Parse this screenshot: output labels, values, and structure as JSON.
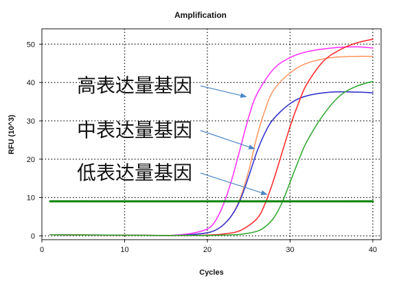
{
  "chart_data": {
    "type": "line",
    "title": "Amplification",
    "xlabel": "Cycles",
    "ylabel": "RFU (10^3)",
    "xlim": [
      0,
      41
    ],
    "ylim": [
      -1,
      54
    ],
    "x_ticks": [
      0,
      10,
      20,
      30,
      40
    ],
    "y_ticks": [
      0,
      10,
      20,
      30,
      40,
      50
    ],
    "grid": true,
    "series": [
      {
        "color": "#ff33ff",
        "x": [
          1,
          14,
          16,
          18,
          20,
          21,
          22,
          23,
          24,
          25,
          26,
          28,
          30,
          32,
          35,
          38,
          40
        ],
        "y": [
          0.3,
          0.1,
          0.2,
          0.6,
          1.8,
          4,
          8.5,
          15,
          23,
          31,
          37,
          43.5,
          46.5,
          48,
          49,
          49.3,
          49
        ]
      },
      {
        "color": "#ff9966",
        "x": [
          1,
          14,
          16,
          18,
          20,
          21,
          22,
          23,
          24,
          25,
          26,
          27,
          28,
          30,
          32,
          35,
          38,
          40
        ],
        "y": [
          0.3,
          0.1,
          0.1,
          0.3,
          0.8,
          1.5,
          3,
          5.5,
          10,
          17,
          26,
          33,
          38,
          42.5,
          45,
          46.5,
          46.8,
          46.8
        ]
      },
      {
        "color": "#3333cc",
        "x": [
          1,
          14,
          16,
          18,
          20,
          21,
          22,
          23,
          24,
          25,
          26,
          27,
          28,
          30,
          32,
          35,
          38,
          40
        ],
        "y": [
          0.3,
          0.1,
          0.1,
          0.3,
          0.8,
          1.5,
          3,
          5.5,
          9.5,
          15.5,
          22,
          27,
          30.5,
          34.5,
          36.5,
          37.5,
          37.5,
          37.3
        ]
      },
      {
        "color": "#ff2a2a",
        "x": [
          1,
          14,
          16,
          18,
          20,
          22,
          24,
          26,
          27,
          28,
          29,
          30,
          31,
          32,
          34,
          36,
          38,
          40
        ],
        "y": [
          0.3,
          0.1,
          0.1,
          0.1,
          0.2,
          0.5,
          1.4,
          4.5,
          8.5,
          14.5,
          21.5,
          28.5,
          34.5,
          39.5,
          45.5,
          48.5,
          50.3,
          51.3
        ]
      },
      {
        "color": "#33aa33",
        "x": [
          1,
          14,
          16,
          18,
          20,
          22,
          24,
          26,
          27,
          28,
          29,
          30,
          31,
          32,
          34,
          36,
          38,
          40
        ],
        "y": [
          0.3,
          0.1,
          0.1,
          0.1,
          0.1,
          0.2,
          0.4,
          1.2,
          2.4,
          4.6,
          8.5,
          14,
          19.5,
          24.5,
          31.5,
          36.5,
          39,
          40.3
        ]
      },
      {
        "color": "#008000",
        "x": [
          1,
          40
        ],
        "y": [
          9,
          9
        ]
      }
    ],
    "annotations": [
      {
        "text": "高表达量基因",
        "arrow_to": [
          24.7,
          36.3
        ]
      },
      {
        "text": "中表达量基因",
        "arrow_to": [
          25.7,
          22.7
        ]
      },
      {
        "text": "低表达量基因",
        "arrow_to": [
          27.2,
          10.8
        ]
      }
    ]
  }
}
